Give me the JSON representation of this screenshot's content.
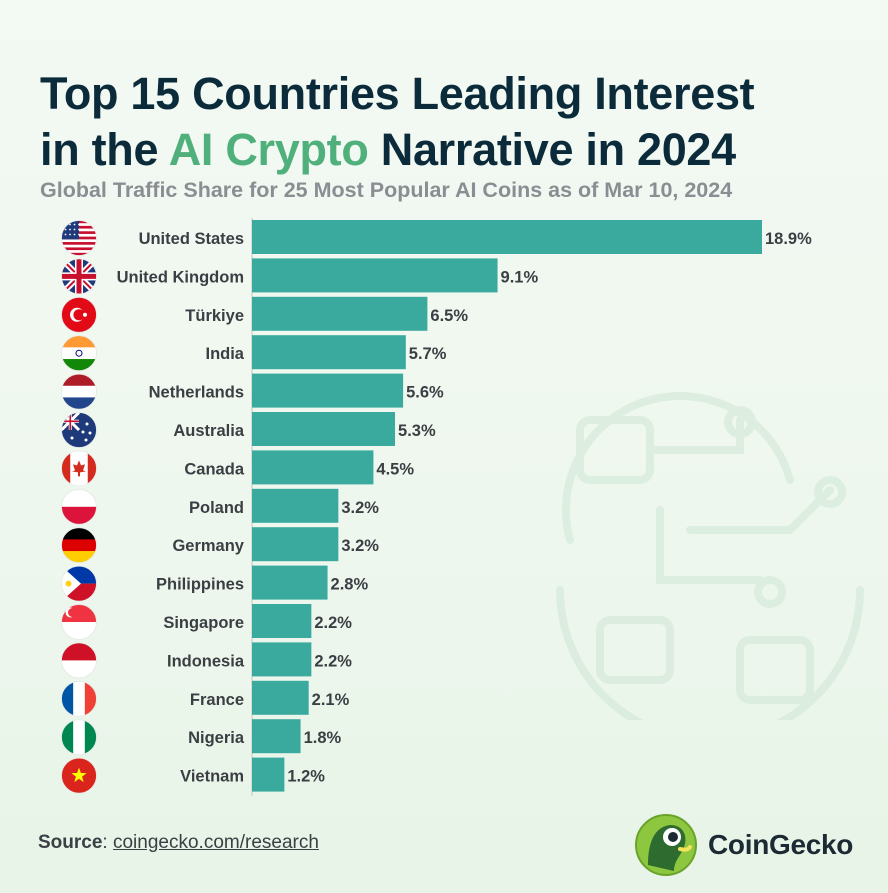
{
  "title": {
    "line1": "Top 15 Countries Leading Interest",
    "line2_pre": "in the ",
    "line2_highlight": "AI Crypto",
    "line2_post": " Narrative in 2024"
  },
  "subtitle": "Global Traffic Share for 25 Most Popular AI Coins as of Mar 10, 2024",
  "colors": {
    "bar": "#3aaa9e",
    "title": "#0b2b3b",
    "highlight": "#4fb07b",
    "subtitle": "#8a8e92"
  },
  "chart_data": {
    "type": "bar",
    "orientation": "horizontal",
    "categories": [
      "United States",
      "United Kingdom",
      "Türkiye",
      "India",
      "Netherlands",
      "Australia",
      "Canada",
      "Poland",
      "Germany",
      "Philippines",
      "Singapore",
      "Indonesia",
      "France",
      "Nigeria",
      "Vietnam"
    ],
    "values": [
      18.9,
      9.1,
      6.5,
      5.7,
      5.6,
      5.3,
      4.5,
      3.2,
      3.2,
      2.8,
      2.2,
      2.2,
      2.1,
      1.8,
      1.2
    ],
    "value_labels": [
      "18.9%",
      "9.1%",
      "6.5%",
      "5.7%",
      "5.6%",
      "5.3%",
      "4.5%",
      "3.2%",
      "3.2%",
      "2.8%",
      "2.2%",
      "2.2%",
      "2.1%",
      "1.8%",
      "1.2%"
    ],
    "flags": [
      "us-flag-icon",
      "uk-flag-icon",
      "turkey-flag-icon",
      "india-flag-icon",
      "netherlands-flag-icon",
      "australia-flag-icon",
      "canada-flag-icon",
      "poland-flag-icon",
      "germany-flag-icon",
      "philippines-flag-icon",
      "singapore-flag-icon",
      "indonesia-flag-icon",
      "france-flag-icon",
      "nigeria-flag-icon",
      "vietnam-flag-icon"
    ],
    "xlim": [
      0,
      18.9
    ],
    "grid": false
  },
  "source": {
    "label": "Source",
    "sep": ": ",
    "link": "coingecko.com/research"
  },
  "brand": {
    "name": "CoinGecko",
    "logo_icon": "coingecko-logo-icon"
  }
}
